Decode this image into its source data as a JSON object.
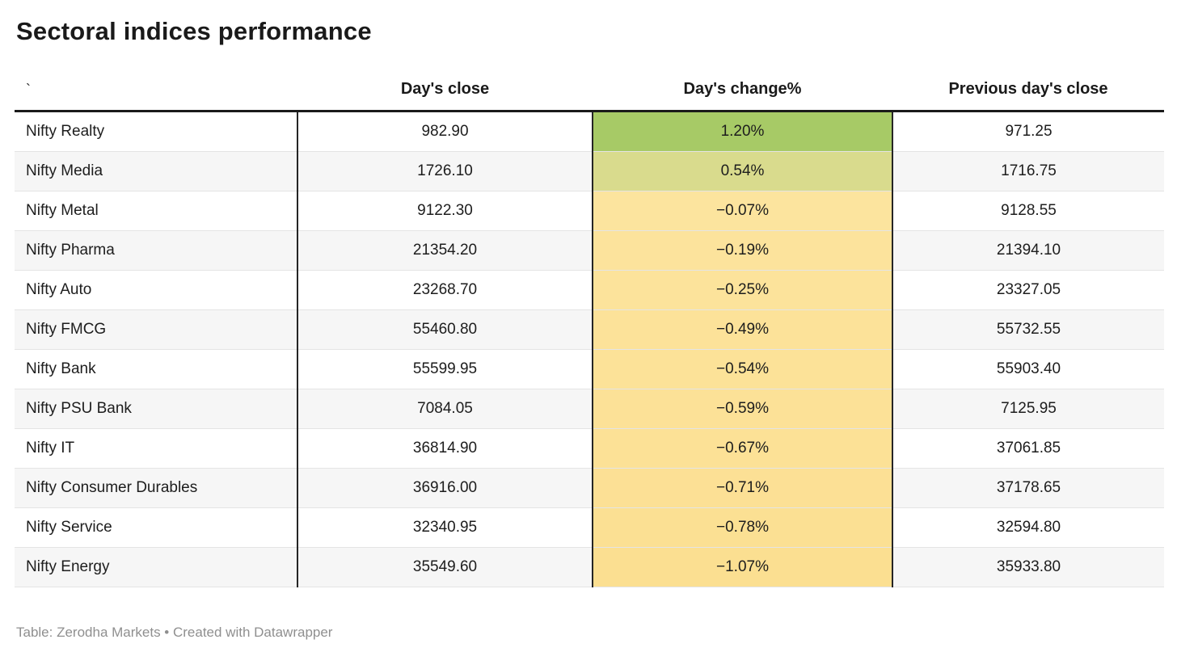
{
  "title": "Sectoral indices performance",
  "footer": "Table: Zerodha Markets • Created with Datawrapper",
  "colors": {
    "header_rule": "#1a1a1a",
    "column_divider": "#252525",
    "row_divider": "#e4e4e4",
    "row_alt_bg": "#f6f6f6",
    "footer_text": "#8f8f8f",
    "heatmap_positive_high": "#a7ca66",
    "heatmap_positive_low": "#d9db8d",
    "heatmap_negative": "#fce39a"
  },
  "chart_data": {
    "type": "table",
    "title": "Sectoral indices performance",
    "columns": [
      "`",
      "Day's close",
      "Day's change%",
      "Previous day's close"
    ],
    "rows": [
      {
        "name": "Nifty Realty",
        "close": "982.90",
        "change_pct": "1.20%",
        "prev_close": "971.25",
        "change_bg": "#a7ca66"
      },
      {
        "name": "Nifty Media",
        "close": "1726.10",
        "change_pct": "0.54%",
        "prev_close": "1716.75",
        "change_bg": "#d9db8d"
      },
      {
        "name": "Nifty Metal",
        "close": "9122.30",
        "change_pct": "−0.07%",
        "prev_close": "9128.55",
        "change_bg": "#fce49e"
      },
      {
        "name": "Nifty Pharma",
        "close": "21354.20",
        "change_pct": "−0.19%",
        "prev_close": "21394.10",
        "change_bg": "#fce39c"
      },
      {
        "name": "Nifty Auto",
        "close": "23268.70",
        "change_pct": "−0.25%",
        "prev_close": "23327.05",
        "change_bg": "#fce39b"
      },
      {
        "name": "Nifty FMCG",
        "close": "55460.80",
        "change_pct": "−0.49%",
        "prev_close": "55732.55",
        "change_bg": "#fce299"
      },
      {
        "name": "Nifty Bank",
        "close": "55599.95",
        "change_pct": "−0.54%",
        "prev_close": "55903.40",
        "change_bg": "#fce298"
      },
      {
        "name": "Nifty PSU Bank",
        "close": "7084.05",
        "change_pct": "−0.59%",
        "prev_close": "7125.95",
        "change_bg": "#fce197"
      },
      {
        "name": "Nifty IT",
        "close": "36814.90",
        "change_pct": "−0.67%",
        "prev_close": "37061.85",
        "change_bg": "#fce196"
      },
      {
        "name": "Nifty Consumer Durables",
        "close": "36916.00",
        "change_pct": "−0.71%",
        "prev_close": "37178.65",
        "change_bg": "#fce095"
      },
      {
        "name": "Nifty Service",
        "close": "32340.95",
        "change_pct": "−0.78%",
        "prev_close": "32594.80",
        "change_bg": "#fbe093"
      },
      {
        "name": "Nifty Energy",
        "close": "35549.60",
        "change_pct": "−1.07%",
        "prev_close": "35933.80",
        "change_bg": "#fbdf91"
      }
    ]
  }
}
